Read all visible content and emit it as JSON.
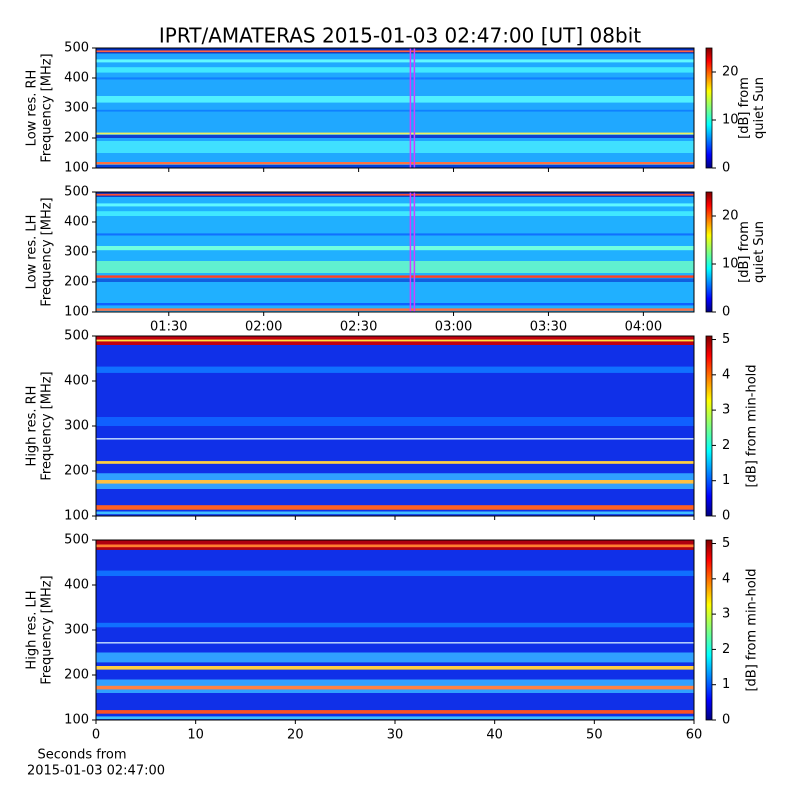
{
  "title": "IPRT/AMATERAS 2015-01-03 02:47:00 [UT]   08bit",
  "chart_data": [
    {
      "type": "heatmap",
      "ylabel": [
        "Low res. RH",
        "Frequency [MHz]"
      ],
      "ylim": [
        100,
        500
      ],
      "yticks": [
        100,
        200,
        300,
        400,
        500
      ],
      "background": "#20a8ff",
      "bands": [
        {
          "range": [
            482,
            500
          ],
          "color": "#0030c0"
        },
        {
          "range": [
            486,
            492
          ],
          "color": "#ff6040"
        },
        {
          "range": [
            452,
            462
          ],
          "color": "#60f8ff"
        },
        {
          "range": [
            418,
            436
          ],
          "color": "#40e8ff"
        },
        {
          "range": [
            395,
            402
          ],
          "color": "#1080ff"
        },
        {
          "range": [
            318,
            340
          ],
          "color": "#50f0ff"
        },
        {
          "range": [
            288,
            294
          ],
          "color": "#1080ff"
        },
        {
          "range": [
            212,
            218
          ],
          "color": "#f0f060"
        },
        {
          "range": [
            200,
            210
          ],
          "color": "#1040d0"
        },
        {
          "range": [
            150,
            190
          ],
          "color": "#40e0ff"
        },
        {
          "range": [
            112,
            120
          ],
          "color": "#ff7040"
        },
        {
          "range": [
            100,
            110
          ],
          "color": "#0040e0"
        }
      ],
      "marker": "02:47",
      "marker_color": "#d040ff",
      "clim": [
        0,
        25
      ],
      "cticks": [
        0,
        10,
        20
      ],
      "clabel": [
        "[dB] from",
        "quiet Sun"
      ]
    },
    {
      "type": "heatmap",
      "ylabel": [
        "Low res. LH",
        "Frequency [MHz]"
      ],
      "ylim": [
        100,
        500
      ],
      "yticks": [
        100,
        200,
        300,
        400,
        500
      ],
      "background": "#20b0ff",
      "bands": [
        {
          "range": [
            484,
            500
          ],
          "color": "#0030c0"
        },
        {
          "range": [
            488,
            494
          ],
          "color": "#ff5030"
        },
        {
          "range": [
            452,
            462
          ],
          "color": "#60f8ff"
        },
        {
          "range": [
            420,
            436
          ],
          "color": "#40e8ff"
        },
        {
          "range": [
            355,
            362
          ],
          "color": "#1070ff"
        },
        {
          "range": [
            306,
            320
          ],
          "color": "#70ffe0"
        },
        {
          "range": [
            214,
            222
          ],
          "color": "#ff4020"
        },
        {
          "range": [
            200,
            212
          ],
          "color": "#1060e0"
        },
        {
          "range": [
            230,
            270
          ],
          "color": "#60f0d0"
        },
        {
          "range": [
            122,
            130
          ],
          "color": "#1060ff"
        },
        {
          "range": [
            104,
            112
          ],
          "color": "#ff7040"
        }
      ],
      "marker": "02:47",
      "marker_color": "#d040ff",
      "xlim": [
        "01:07",
        "04:16"
      ],
      "xticks": [
        "01:30",
        "02:00",
        "02:30",
        "03:00",
        "03:30",
        "04:00"
      ],
      "clim": [
        0,
        25
      ],
      "cticks": [
        0,
        10,
        20
      ],
      "clabel": [
        "[dB] from",
        "quiet Sun"
      ]
    },
    {
      "type": "heatmap",
      "ylabel": [
        "High res. RH",
        "Frequency [MHz]"
      ],
      "ylim": [
        100,
        500
      ],
      "yticks": [
        100,
        200,
        300,
        400,
        500
      ],
      "background": "#1030e8",
      "bands": [
        {
          "range": [
            480,
            500
          ],
          "color": "#c00010"
        },
        {
          "range": [
            488,
            492
          ],
          "color": "#ffe040"
        },
        {
          "range": [
            418,
            432
          ],
          "color": "#1070ff"
        },
        {
          "range": [
            300,
            320
          ],
          "color": "#1060ff"
        },
        {
          "range": [
            270,
            273
          ],
          "color": "#d0e8ff"
        },
        {
          "range": [
            216,
            222
          ],
          "color": "#ffd040"
        },
        {
          "range": [
            160,
            195
          ],
          "color": "#30a0ff"
        },
        {
          "range": [
            172,
            180
          ],
          "color": "#ffc040"
        },
        {
          "range": [
            114,
            124
          ],
          "color": "#ff6020"
        },
        {
          "range": [
            104,
            110
          ],
          "color": "#40c0ff"
        }
      ],
      "clim": [
        0,
        5.1
      ],
      "cticks": [
        0,
        1,
        2,
        3,
        4,
        5
      ],
      "clabel": [
        "[dB] from min-hold"
      ]
    },
    {
      "type": "heatmap",
      "ylabel": [
        "High res. LH",
        "Frequency [MHz]"
      ],
      "ylim": [
        100,
        500
      ],
      "yticks": [
        100,
        200,
        300,
        400,
        500
      ],
      "background": "#1030e8",
      "bands": [
        {
          "range": [
            478,
            500
          ],
          "color": "#b00010"
        },
        {
          "range": [
            484,
            490
          ],
          "color": "#ff8030"
        },
        {
          "range": [
            420,
            432
          ],
          "color": "#1070ff"
        },
        {
          "range": [
            306,
            316
          ],
          "color": "#1070ff"
        },
        {
          "range": [
            270,
            273
          ],
          "color": "#d0e8ff"
        },
        {
          "range": [
            228,
            250
          ],
          "color": "#30a0ff"
        },
        {
          "range": [
            212,
            220
          ],
          "color": "#ffd040"
        },
        {
          "range": [
            160,
            190
          ],
          "color": "#30a0ff"
        },
        {
          "range": [
            168,
            176
          ],
          "color": "#ff8040"
        },
        {
          "range": [
            114,
            122
          ],
          "color": "#ff5020"
        },
        {
          "range": [
            102,
            108
          ],
          "color": "#40c0ff"
        }
      ],
      "xlim": [
        0,
        60
      ],
      "xticks": [
        0,
        10,
        20,
        30,
        40,
        50,
        60
      ],
      "xlabel": [
        "Seconds from",
        "2015-01-03 02:47:00"
      ],
      "clim": [
        0,
        5.1
      ],
      "cticks": [
        0,
        1,
        2,
        3,
        4,
        5
      ],
      "clabel": [
        "[dB] from min-hold"
      ]
    }
  ]
}
